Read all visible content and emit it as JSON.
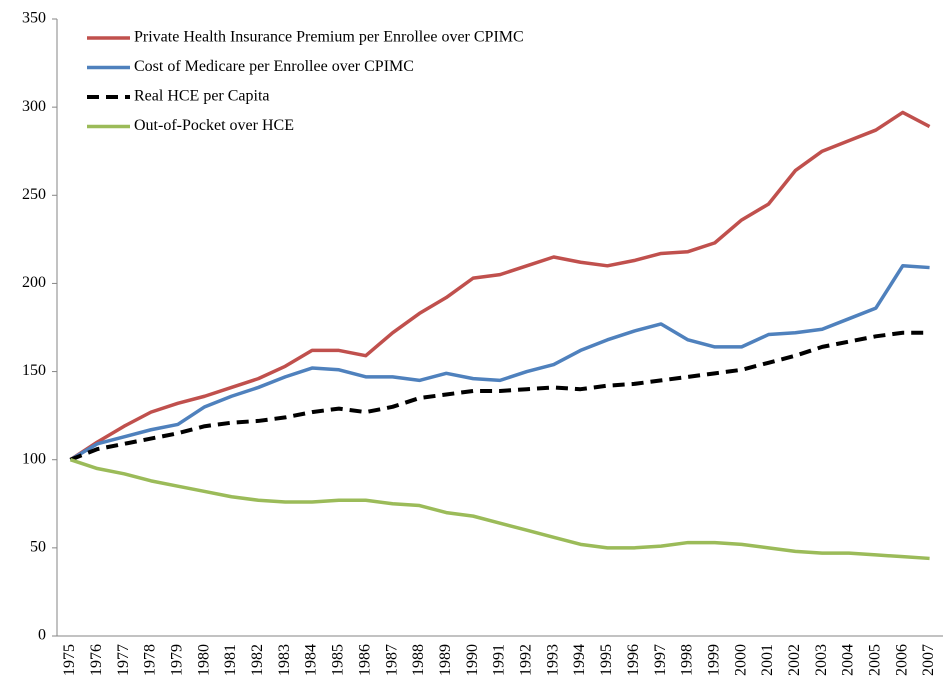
{
  "chart_data": {
    "type": "line",
    "categories": [
      "1975",
      "1976",
      "1977",
      "1978",
      "1979",
      "1980",
      "1981",
      "1982",
      "1983",
      "1984",
      "1985",
      "1986",
      "1987",
      "1988",
      "1989",
      "1990",
      "1991",
      "1992",
      "1993",
      "1994",
      "1995",
      "1996",
      "1997",
      "1998",
      "1999",
      "2000",
      "2001",
      "2002",
      "2003",
      "2004",
      "2005",
      "2006",
      "2007"
    ],
    "series": [
      {
        "name": "Private Health Insurance Premium per Enrollee over CPIMC",
        "color": "#c0504d",
        "dashed": false,
        "values": [
          100,
          110,
          119,
          127,
          132,
          136,
          141,
          146,
          153,
          162,
          162,
          159,
          172,
          183,
          192,
          203,
          205,
          210,
          215,
          212,
          210,
          213,
          217,
          218,
          223,
          236,
          245,
          264,
          275,
          281,
          287,
          297,
          289
        ]
      },
      {
        "name": "Cost of Medicare per Enrollee over CPIMC",
        "color": "#4f81bd",
        "dashed": false,
        "values": [
          100,
          109,
          113,
          117,
          120,
          130,
          136,
          141,
          147,
          152,
          151,
          147,
          147,
          145,
          149,
          146,
          145,
          150,
          154,
          162,
          168,
          173,
          177,
          168,
          164,
          164,
          171,
          172,
          174,
          180,
          186,
          210,
          209
        ]
      },
      {
        "name": "Real HCE per Capita",
        "color": "#000000",
        "dashed": true,
        "values": [
          100,
          106,
          109,
          112,
          115,
          119,
          121,
          122,
          124,
          127,
          129,
          127,
          130,
          135,
          137,
          139,
          139,
          140,
          141,
          140,
          142,
          143,
          145,
          147,
          149,
          151,
          155,
          159,
          164,
          167,
          170,
          172,
          172
        ]
      },
      {
        "name": "Out-of-Pocket over HCE",
        "color": "#9bbb59",
        "dashed": false,
        "values": [
          100,
          95,
          92,
          88,
          85,
          82,
          79,
          77,
          76,
          76,
          77,
          77,
          75,
          74,
          70,
          68,
          64,
          60,
          56,
          52,
          50,
          50,
          51,
          53,
          53,
          52,
          50,
          48,
          47,
          47,
          46,
          45,
          44
        ]
      }
    ],
    "ylim": [
      0,
      350
    ],
    "yticks": [
      0,
      50,
      100,
      150,
      200,
      250,
      300,
      350
    ],
    "grid": false,
    "legend": "upper left"
  }
}
